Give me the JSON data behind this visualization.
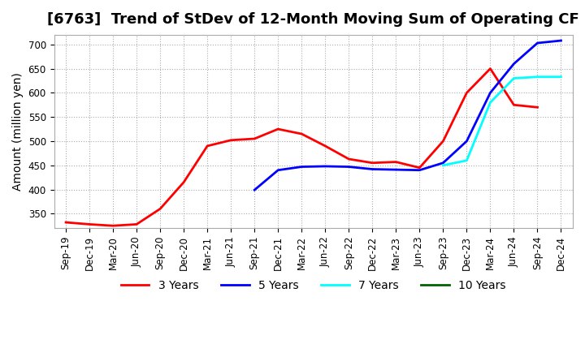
{
  "title": "[6763]  Trend of StDev of 12-Month Moving Sum of Operating CF",
  "ylabel": "Amount (million yen)",
  "ylim": [
    320,
    720
  ],
  "yticks": [
    350,
    400,
    450,
    500,
    550,
    600,
    650,
    700
  ],
  "x_labels": [
    "Sep-19",
    "Dec-19",
    "Mar-20",
    "Jun-20",
    "Sep-20",
    "Dec-20",
    "Mar-21",
    "Jun-21",
    "Sep-21",
    "Dec-21",
    "Mar-22",
    "Jun-22",
    "Sep-22",
    "Dec-22",
    "Mar-23",
    "Jun-23",
    "Sep-23",
    "Dec-23",
    "Mar-24",
    "Jun-24",
    "Sep-24",
    "Dec-24"
  ],
  "series_3y": {
    "label": "3 Years",
    "color": "#FF0000",
    "x": [
      0,
      1,
      2,
      3,
      4,
      5,
      6,
      7,
      8,
      9,
      10,
      11,
      12,
      13,
      14,
      15,
      16,
      17,
      18,
      19,
      20
    ],
    "y": [
      332,
      328,
      325,
      328,
      360,
      415,
      490,
      502,
      505,
      525,
      515,
      490,
      463,
      455,
      457,
      445,
      500,
      600,
      650,
      575,
      570
    ]
  },
  "series_5y": {
    "label": "5 Years",
    "color": "#0000FF",
    "x": [
      8,
      9,
      10,
      11,
      12,
      13,
      14,
      15,
      16,
      17,
      18,
      19,
      20,
      21
    ],
    "y": [
      399,
      440,
      447,
      448,
      447,
      442,
      441,
      440,
      455,
      500,
      600,
      660,
      703,
      708
    ]
  },
  "series_7y": {
    "label": "7 Years",
    "color": "#00FFFF",
    "x": [
      16,
      17,
      18,
      19,
      20,
      21
    ],
    "y": [
      450,
      460,
      580,
      630,
      633,
      633
    ]
  },
  "series_10y": {
    "label": "10 Years",
    "color": "#006400",
    "x": [],
    "y": []
  },
  "background_color": "#ffffff",
  "grid_color": "#aaaaaa",
  "title_fontsize": 13,
  "axis_fontsize": 10,
  "tick_fontsize": 8.5,
  "legend_fontsize": 10
}
